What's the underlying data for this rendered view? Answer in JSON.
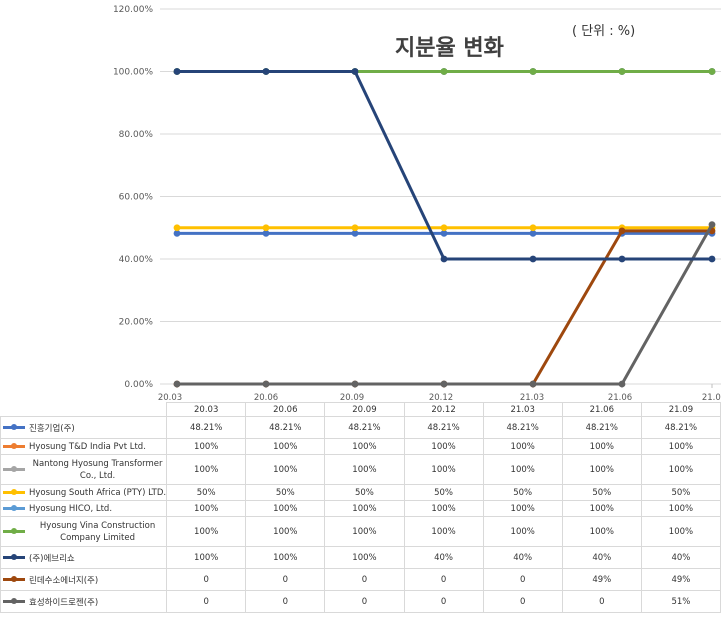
{
  "chart_data": {
    "type": "line",
    "title": "지분율 변화",
    "unit_note": "( 단위 : %)",
    "categories": [
      "20.03",
      "20.06",
      "20.09",
      "20.12",
      "21.03",
      "21.06",
      "21.09"
    ],
    "y_ticks": [
      "120.00%",
      "100.00%",
      "80.00%",
      "60.00%",
      "40.00%",
      "20.00%",
      "0.00%"
    ],
    "ylim": [
      0,
      120
    ],
    "grid": true,
    "legend_position": "data table (bottom)",
    "series": [
      {
        "name": "진흥기업(주)",
        "color": "#4472c4",
        "values": [
          48.21,
          48.21,
          48.21,
          48.21,
          48.21,
          48.21,
          48.21
        ],
        "labels": [
          "48.21%",
          "48.21%",
          "48.21%",
          "48.21%",
          "48.21%",
          "48.21%",
          "48.21%"
        ],
        "wrap": false
      },
      {
        "name": "Hyosung T&D India Pvt Ltd.",
        "color": "#ed7d31",
        "values": [
          100,
          100,
          100,
          100,
          100,
          100,
          100
        ],
        "labels": [
          "100%",
          "100%",
          "100%",
          "100%",
          "100%",
          "100%",
          "100%"
        ],
        "wrap": false
      },
      {
        "name": "Nantong Hyosung Transformer Co., Ltd.",
        "color": "#a5a5a5",
        "values": [
          100,
          100,
          100,
          100,
          100,
          100,
          100
        ],
        "labels": [
          "100%",
          "100%",
          "100%",
          "100%",
          "100%",
          "100%",
          "100%"
        ],
        "wrap": true
      },
      {
        "name": "Hyosung South Africa (PTY) LTD.",
        "color": "#ffc000",
        "values": [
          50,
          50,
          50,
          50,
          50,
          50,
          50
        ],
        "labels": [
          "50%",
          "50%",
          "50%",
          "50%",
          "50%",
          "50%",
          "50%"
        ],
        "wrap": false
      },
      {
        "name": "Hyosung HICO, Ltd.",
        "color": "#5b9bd5",
        "values": [
          100,
          100,
          100,
          100,
          100,
          100,
          100
        ],
        "labels": [
          "100%",
          "100%",
          "100%",
          "100%",
          "100%",
          "100%",
          "100%"
        ],
        "wrap": false
      },
      {
        "name": "Hyosung Vina Construction Company Limited",
        "color": "#70ad47",
        "values": [
          100,
          100,
          100,
          100,
          100,
          100,
          100
        ],
        "labels": [
          "100%",
          "100%",
          "100%",
          "100%",
          "100%",
          "100%",
          "100%"
        ],
        "wrap": true
      },
      {
        "name": "(주)에브리쇼",
        "color": "#264478",
        "values": [
          100,
          100,
          100,
          40,
          40,
          40,
          40
        ],
        "labels": [
          "100%",
          "100%",
          "100%",
          "40%",
          "40%",
          "40%",
          "40%"
        ],
        "wrap": false
      },
      {
        "name": "린데수소에너지(주)",
        "color": "#9e480e",
        "values": [
          0,
          0,
          0,
          0,
          0,
          49,
          49
        ],
        "labels": [
          "0",
          "0",
          "0",
          "0",
          "0",
          "49%",
          "49%"
        ],
        "wrap": false
      },
      {
        "name": "효성하이드로젠(주)",
        "color": "#636363",
        "values": [
          0,
          0,
          0,
          0,
          0,
          0,
          51
        ],
        "labels": [
          "0",
          "0",
          "0",
          "0",
          "0",
          "0",
          "51%"
        ],
        "wrap": false
      }
    ]
  }
}
